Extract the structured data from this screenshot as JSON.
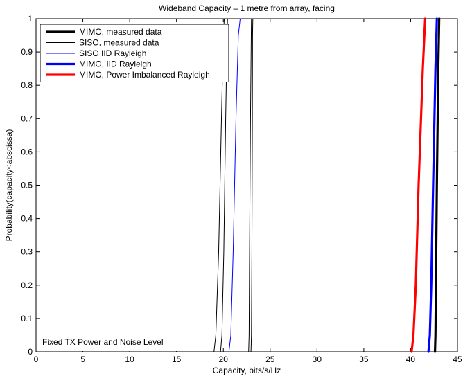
{
  "chart_data": {
    "type": "line",
    "title": "Wideband Capacity – 1 metre from array, facing",
    "xlabel": "Capacity, bits/s/Hz",
    "ylabel": "Probability(capacity<abscissa)",
    "xlim": [
      0,
      45
    ],
    "ylim": [
      0,
      1
    ],
    "xticks": [
      0,
      5,
      10,
      15,
      20,
      25,
      30,
      35,
      40,
      45
    ],
    "yticks": [
      0,
      0.1,
      0.2,
      0.3,
      0.4,
      0.5,
      0.6,
      0.7,
      0.8,
      0.9,
      1
    ],
    "xtick_labels": [
      "0",
      "5",
      "10",
      "15",
      "20",
      "25",
      "30",
      "35",
      "40",
      "45"
    ],
    "ytick_labels": [
      "0",
      "0.1",
      "0.2",
      "0.3",
      "0.4",
      "0.5",
      "0.6",
      "0.7",
      "0.8",
      "0.9",
      "1"
    ],
    "grid": false,
    "legend_position": "top-left",
    "annotation": "Fixed TX Power and Noise Level",
    "series": [
      {
        "name": "MIMO, measured data",
        "color": "#000000",
        "style": "thick",
        "x": [
          42.6,
          42.65,
          42.7,
          42.8,
          42.95,
          43.05
        ],
        "y": [
          0,
          0.05,
          0.2,
          0.5,
          0.85,
          1
        ]
      },
      {
        "name": "SISO, measured data",
        "color": "#000000",
        "style": "thin",
        "curves": [
          {
            "x": [
              19.0,
              19.2,
              19.5,
              19.8,
              20.0,
              20.1
            ],
            "y": [
              0,
              0.05,
              0.3,
              0.7,
              0.95,
              1
            ]
          },
          {
            "x": [
              19.7,
              19.85,
              20.05,
              20.25,
              20.4,
              20.45
            ],
            "y": [
              0,
              0.05,
              0.3,
              0.7,
              0.95,
              1
            ]
          },
          {
            "x": [
              22.7,
              22.75,
              22.8,
              22.9,
              22.98,
              23.0
            ],
            "y": [
              0,
              0.05,
              0.3,
              0.7,
              0.95,
              1
            ]
          },
          {
            "x": [
              22.95,
              23.0,
              23.05,
              23.1,
              23.12,
              23.15
            ],
            "y": [
              0,
              0.05,
              0.3,
              0.7,
              0.95,
              1
            ]
          }
        ]
      },
      {
        "name": "SISO IID Rayleigh",
        "color": "#0000ff",
        "style": "thin",
        "x": [
          20.6,
          20.8,
          21.05,
          21.35,
          21.6,
          21.8
        ],
        "y": [
          0,
          0.05,
          0.3,
          0.7,
          0.95,
          1
        ]
      },
      {
        "name": "MIMO, IID Rayleigh",
        "color": "#0000ff",
        "style": "thick",
        "x": [
          41.9,
          42.05,
          42.2,
          42.4,
          42.65,
          42.8
        ],
        "y": [
          0,
          0.05,
          0.2,
          0.5,
          0.85,
          1
        ]
      },
      {
        "name": "MIMO, Power Imbalanced Rayleigh",
        "color": "#ff0000",
        "style": "thick",
        "x": [
          40.1,
          40.3,
          40.55,
          40.85,
          41.3,
          41.55
        ],
        "y": [
          0,
          0.05,
          0.2,
          0.5,
          0.85,
          1
        ]
      }
    ]
  }
}
